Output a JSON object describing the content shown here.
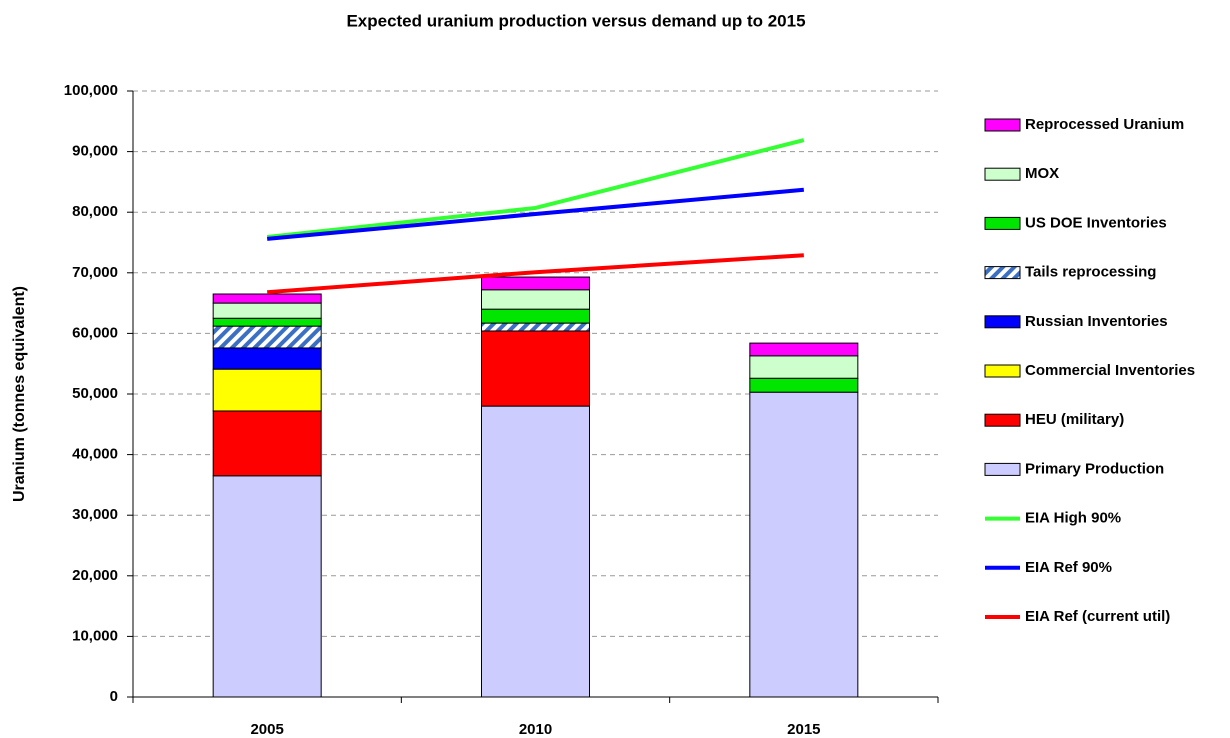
{
  "chart_data": {
    "type": "bar",
    "stacked": true,
    "title": "Expected uranium production versus demand up to 2015",
    "y_label": "Uranium (tonnes equivalent)",
    "categories": [
      "2005",
      "2010",
      "2015"
    ],
    "series": [
      {
        "name": "Primary Production",
        "color": "#ccccff",
        "values": [
          36500,
          48000,
          50300
        ]
      },
      {
        "name": "HEU (military)",
        "color": "#ff0000",
        "values": [
          10700,
          12400,
          0
        ]
      },
      {
        "name": "Commercial Inventories",
        "color": "#ffff00",
        "values": [
          6900,
          0,
          0
        ]
      },
      {
        "name": "Russian Inventories",
        "color": "#0000ff",
        "values": [
          3500,
          0,
          0
        ]
      },
      {
        "name": "Tails reprocessing",
        "color": "#3a6fc4",
        "hatch": true,
        "values": [
          3600,
          1300,
          0
        ]
      },
      {
        "name": "US DOE Inventories",
        "color": "#00e600",
        "values": [
          1300,
          2300,
          2300
        ]
      },
      {
        "name": "MOX",
        "color": "#ccffcc",
        "values": [
          2500,
          3200,
          3700
        ]
      },
      {
        "name": "Reprocessed Uranium",
        "color": "#ff00ff",
        "values": [
          1500,
          2100,
          2100
        ]
      },
      {
        "name": "EIA High 90%",
        "type": "line",
        "color": "#33ff33",
        "values": [
          75900,
          80700,
          91900
        ]
      },
      {
        "name": "EIA Ref 90%",
        "type": "line",
        "color": "#0000ff",
        "values": [
          75600,
          79700,
          83700
        ]
      },
      {
        "name": "EIA Ref (current util)",
        "type": "line",
        "color": "#ff0000",
        "values": [
          66800,
          70100,
          72900
        ]
      }
    ],
    "ylim": [
      0,
      100000
    ],
    "yticks": [
      0,
      {
        "value": 10000,
        "label": "10,000"
      },
      {
        "value": 20000,
        "label": "20,000"
      },
      {
        "value": 30000,
        "label": "30,000"
      },
      {
        "value": 40000,
        "label": "40,000"
      },
      {
        "value": 50000,
        "label": "50,000"
      },
      {
        "value": 60000,
        "label": "60,000"
      },
      {
        "value": 70000,
        "label": "70,000"
      },
      {
        "value": 80000,
        "label": "80,000"
      },
      {
        "value": 90000,
        "label": "90,000"
      },
      {
        "value": 100000,
        "label": "100,000"
      }
    ],
    "grid": true,
    "legend": "right"
  }
}
